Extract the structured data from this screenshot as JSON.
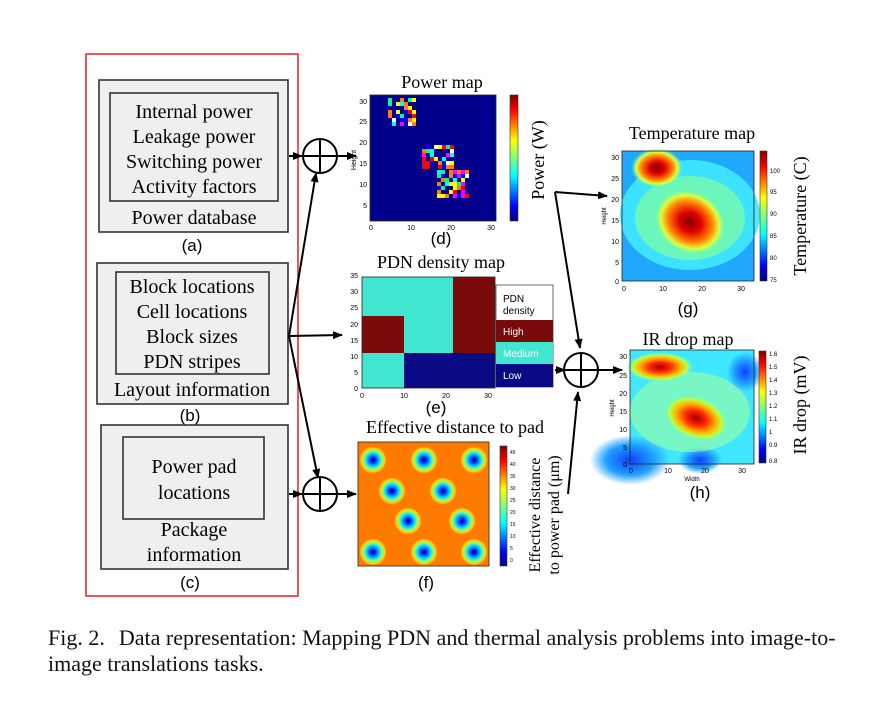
{
  "inputs": {
    "power_db": {
      "items": [
        "Internal power",
        "Leakage power",
        "Switching power",
        "Activity factors"
      ],
      "title": "Power database",
      "label": "(a)"
    },
    "layout": {
      "items": [
        "Block locations",
        "Cell locations",
        "Block sizes",
        "PDN stripes"
      ],
      "title": "Layout information",
      "label": "(b)"
    },
    "package": {
      "items": [
        "Power pad",
        "locations"
      ],
      "title_lines": [
        "Package",
        "information"
      ],
      "label": "(c)"
    }
  },
  "maps": {
    "power": {
      "title": "Power map",
      "colorbar_label": "Power (W)",
      "label": "(d)",
      "ylabel": "Height",
      "x_ticks": [
        "0",
        "10",
        "20",
        "30"
      ],
      "y_ticks": [
        "30",
        "25",
        "20",
        "15",
        "10",
        "5"
      ]
    },
    "pdn": {
      "title": "PDN density map",
      "label": "(e)",
      "x_ticks": [
        "0",
        "10",
        "20",
        "30"
      ],
      "y_ticks": [
        "35",
        "30",
        "25",
        "20",
        "15",
        "10",
        "5",
        "0"
      ],
      "legend": {
        "title_lines": [
          "PDN",
          "density"
        ],
        "entries": [
          {
            "label": "High",
            "color": "#7b0a0a"
          },
          {
            "label": "Medium",
            "color": "#40e6cf"
          },
          {
            "label": "Low",
            "color": "#0a0a85"
          }
        ]
      }
    },
    "distance": {
      "title": "Effective distance to pad",
      "colorbar_label_lines": [
        "Effective distance",
        "to power pad (μm)"
      ],
      "label": "(f)",
      "colorbar_ticks": [
        "45",
        "40",
        "35",
        "30",
        "25",
        "20",
        "15",
        "10",
        "5",
        "0"
      ]
    },
    "temperature": {
      "title": "Temperature map",
      "colorbar_label": "Temperature (C)",
      "label": "(g)",
      "ylabel": "Height",
      "x_ticks": [
        "0",
        "10",
        "20",
        "30"
      ],
      "y_ticks": [
        "30",
        "25",
        "20",
        "15",
        "10",
        "5",
        "0"
      ],
      "colorbar_ticks": [
        "100",
        "95",
        "90",
        "85",
        "80",
        "75"
      ]
    },
    "ir_drop": {
      "title": "IR drop map",
      "colorbar_label": "IR drop (mV)",
      "label": "(h)",
      "ylabel": "Height",
      "xlabel": "Width",
      "x_ticks": [
        "0",
        "10",
        "20",
        "30"
      ],
      "y_ticks": [
        "30",
        "25",
        "20",
        "15",
        "10",
        "5",
        "0"
      ],
      "colorbar_ticks": [
        "1.6",
        "1.5",
        "1.4",
        "1.3",
        "1.2",
        "1.1",
        "1",
        "0.9",
        "0.8"
      ]
    }
  },
  "operators": {
    "sum_symbol": "⊕"
  },
  "caption": {
    "label": "Fig. 2.",
    "text": "Data representation: Mapping PDN and thermal analysis problems into image-to-image translations tasks."
  }
}
